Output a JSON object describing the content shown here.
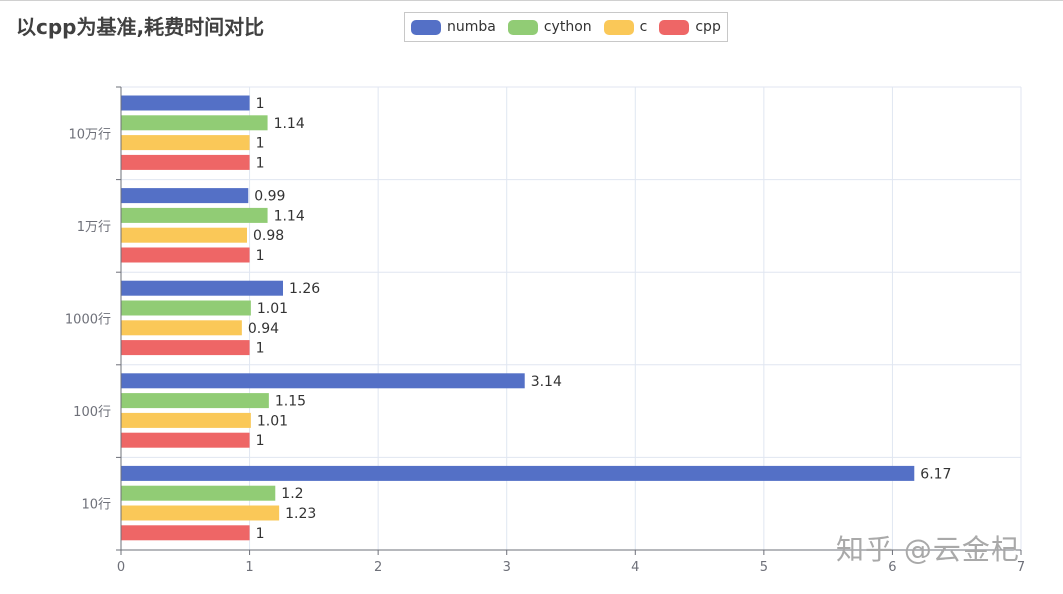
{
  "chart_data": {
    "type": "bar",
    "orientation": "horizontal",
    "title": "以cpp为基准,耗费时间对比",
    "categories": [
      "10万行",
      "1万行",
      "1000行",
      "100行",
      "10行"
    ],
    "series": [
      {
        "name": "numba",
        "color": "#5470c6",
        "values": [
          1,
          0.99,
          1.26,
          3.14,
          6.17
        ]
      },
      {
        "name": "cython",
        "color": "#91cc75",
        "values": [
          1.14,
          1.14,
          1.01,
          1.15,
          1.2
        ]
      },
      {
        "name": "c",
        "color": "#fac858",
        "values": [
          1,
          0.98,
          0.94,
          1.01,
          1.23
        ]
      },
      {
        "name": "cpp",
        "color": "#ee6666",
        "values": [
          1,
          1,
          1,
          1,
          1
        ]
      }
    ],
    "x_ticks": [
      "0",
      "1",
      "2",
      "3",
      "4",
      "5",
      "6",
      "7"
    ],
    "xlim": [
      0,
      7
    ],
    "xlabel": "",
    "ylabel": "",
    "grid": true,
    "legend_position": "top-center",
    "data_labels": true
  },
  "watermark": "知乎 @云金杞"
}
